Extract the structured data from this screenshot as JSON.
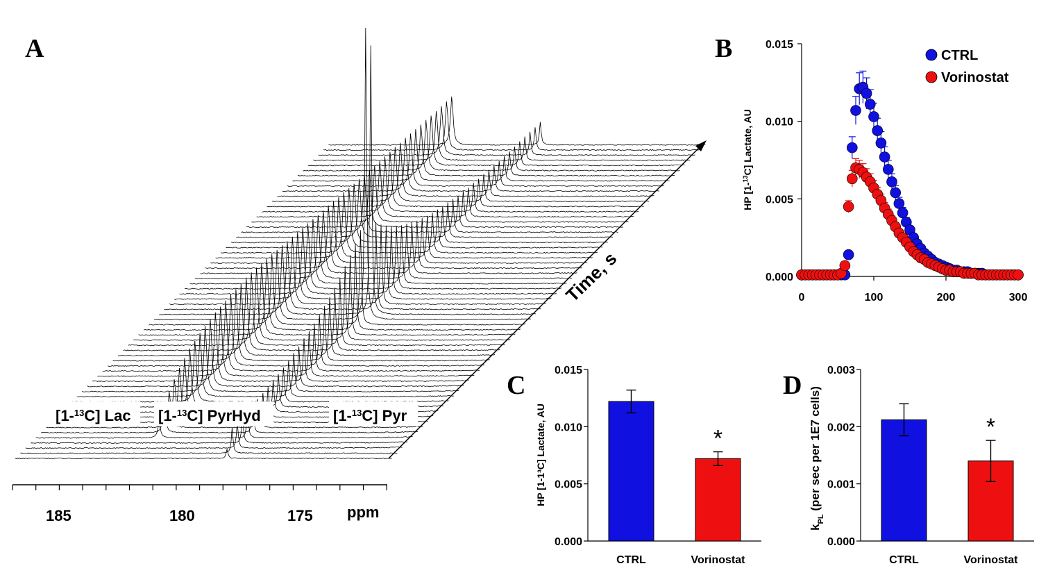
{
  "panels": {
    "A": "A",
    "B": "B",
    "C": "C",
    "D": "D"
  },
  "spectrum": {
    "ppm_ticks": [
      "185",
      "180",
      "175"
    ],
    "ppm_label": "ppm",
    "time_label": "Time, s",
    "peaks": [
      {
        "name": "lac",
        "pre": "[1-",
        "sup": "13",
        "post": "C] Lac"
      },
      {
        "name": "pyrhyd",
        "pre": "[1-",
        "sup": "13",
        "post": "C] PyrHyd"
      },
      {
        "name": "pyr",
        "pre": "[1-",
        "sup": "13",
        "post": "C] Pyr"
      }
    ]
  },
  "colors": {
    "ctrl": "#1010e0",
    "vorinostat": "#ee1010",
    "axis": "#000000"
  },
  "chart_data": [
    {
      "type": "scatter",
      "panel": "B",
      "ylabel_pre": "HP [1-",
      "ylabel_sup": "13",
      "ylabel_post": "C] Lactate, AU",
      "xlim": [
        0,
        300
      ],
      "ylim": [
        0,
        0.015
      ],
      "x_ticks": [
        "0",
        "100",
        "200",
        "300"
      ],
      "y_ticks": [
        "0.000",
        "0.005",
        "0.010",
        "0.015"
      ],
      "legend_position": "top-right",
      "series": [
        {
          "name": "CTRL",
          "color_key": "ctrl",
          "x": [
            0,
            5,
            10,
            15,
            20,
            25,
            30,
            35,
            40,
            45,
            50,
            55,
            60,
            65,
            70,
            75,
            80,
            85,
            90,
            95,
            100,
            105,
            110,
            115,
            120,
            125,
            130,
            135,
            140,
            145,
            150,
            155,
            160,
            165,
            170,
            175,
            180,
            185,
            190,
            195,
            200,
            205,
            210,
            215,
            220,
            225,
            230,
            235,
            240,
            245,
            250,
            255,
            260,
            265,
            270,
            275,
            280,
            285,
            290,
            295,
            300
          ],
          "y": [
            0.0001,
            0.0001,
            0.0001,
            0.0001,
            0.0001,
            0.0001,
            0.0001,
            0.0001,
            0.0001,
            0.0001,
            0.0001,
            0.0001,
            0.0001,
            0.0014,
            0.0083,
            0.0107,
            0.0121,
            0.0122,
            0.0118,
            0.0111,
            0.0103,
            0.0094,
            0.0086,
            0.0077,
            0.0069,
            0.0061,
            0.0054,
            0.0047,
            0.0041,
            0.0035,
            0.003,
            0.0025,
            0.0021,
            0.0018,
            0.0015,
            0.0013,
            0.0011,
            0.0009,
            0.0008,
            0.0007,
            0.0006,
            0.0005,
            0.0004,
            0.0004,
            0.0003,
            0.0003,
            0.0003,
            0.0002,
            0.0002,
            0.0002,
            0.0002,
            0.0001,
            0.0001,
            0.0001,
            0.0001,
            0.0001,
            0.0001,
            0.0001,
            0.0001,
            0.0001,
            0.0001
          ]
        },
        {
          "name": "Vorinostat",
          "color_key": "vorinostat",
          "x": [
            0,
            5,
            10,
            15,
            20,
            25,
            30,
            35,
            40,
            45,
            50,
            55,
            60,
            65,
            70,
            75,
            80,
            85,
            90,
            95,
            100,
            105,
            110,
            115,
            120,
            125,
            130,
            135,
            140,
            145,
            150,
            155,
            160,
            165,
            170,
            175,
            180,
            185,
            190,
            195,
            200,
            205,
            210,
            215,
            220,
            225,
            230,
            235,
            240,
            245,
            250,
            255,
            260,
            265,
            270,
            275,
            280,
            285,
            290,
            295,
            300
          ],
          "y": [
            0.0001,
            0.0001,
            0.0001,
            0.0001,
            0.0001,
            0.0001,
            0.0001,
            0.0001,
            0.0001,
            0.0001,
            0.0001,
            0.0002,
            0.0007,
            0.0045,
            0.0063,
            0.007,
            0.0069,
            0.0067,
            0.0064,
            0.0061,
            0.0057,
            0.0053,
            0.0049,
            0.0044,
            0.004,
            0.0036,
            0.0032,
            0.0028,
            0.0025,
            0.0022,
            0.0019,
            0.0016,
            0.0014,
            0.0012,
            0.0011,
            0.0009,
            0.0008,
            0.0007,
            0.0006,
            0.0005,
            0.0004,
            0.0004,
            0.0003,
            0.0003,
            0.0003,
            0.0002,
            0.0002,
            0.0002,
            0.0002,
            0.0001,
            0.0001,
            0.0001,
            0.0001,
            0.0001,
            0.0001,
            0.0001,
            0.0001,
            0.0001,
            0.0001,
            0.0001,
            0.0001
          ]
        }
      ]
    },
    {
      "type": "bar",
      "panel": "C",
      "ylabel": "HP [1-1³C] Lactate, AU",
      "categories": [
        "CTRL",
        "Vorinostat"
      ],
      "values": [
        0.0122,
        0.0072
      ],
      "errors": [
        0.001,
        0.0006
      ],
      "ylim": [
        0,
        0.015
      ],
      "y_ticks": [
        "0.000",
        "0.005",
        "0.010",
        "0.015"
      ],
      "annotations": [
        "",
        "*"
      ]
    },
    {
      "type": "bar",
      "panel": "D",
      "ylabel_pre": "k",
      "ylabel_sub": "PL",
      "ylabel_post": " (per sec per 1E7 cells)",
      "categories": [
        "CTRL",
        "Vorinostat"
      ],
      "values": [
        0.00212,
        0.0014
      ],
      "errors": [
        0.00028,
        0.00036
      ],
      "ylim": [
        0,
        0.003
      ],
      "y_ticks": [
        "0.000",
        "0.001",
        "0.002",
        "0.003"
      ],
      "annotations": [
        "",
        "*"
      ]
    }
  ]
}
